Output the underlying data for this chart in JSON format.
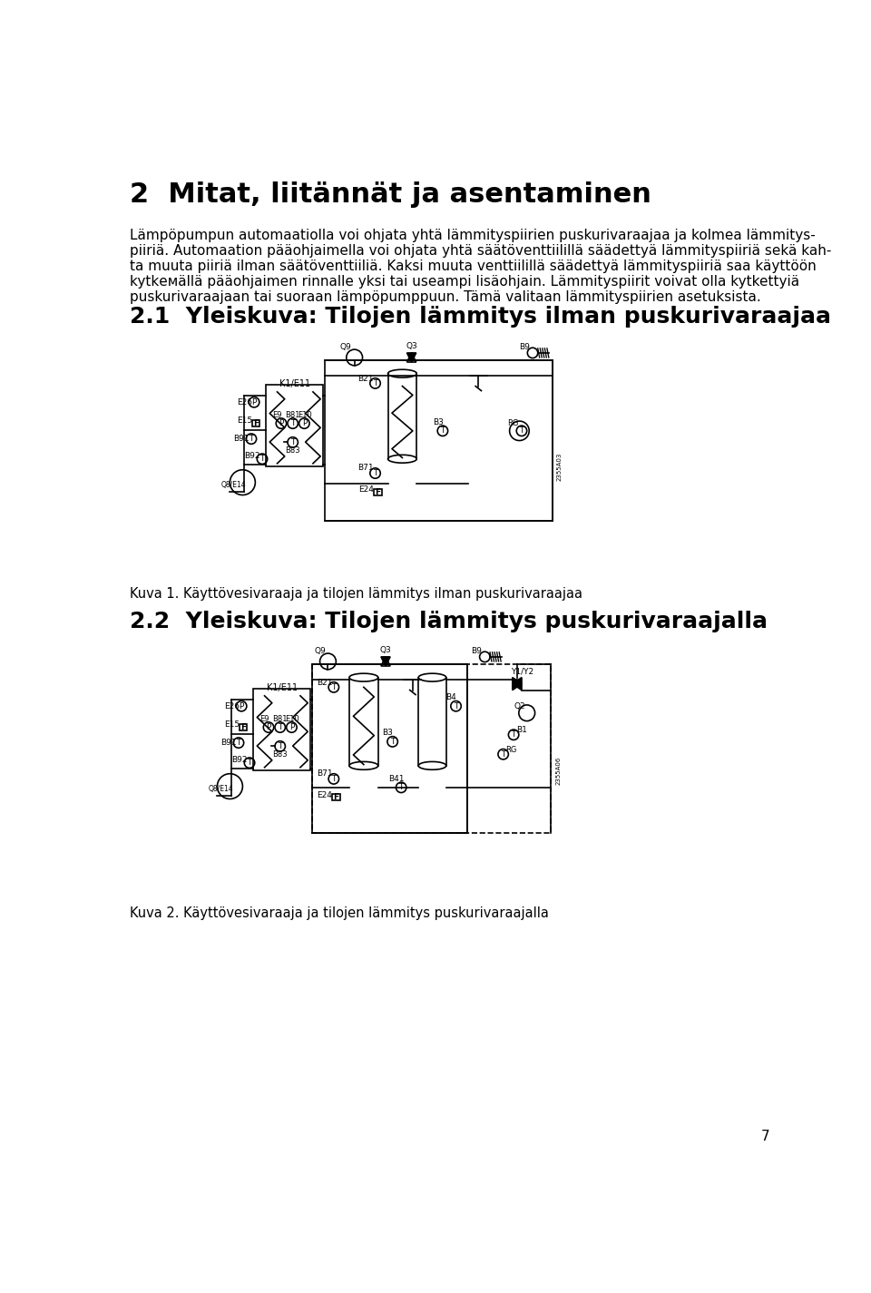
{
  "bg_color": "#ffffff",
  "text_color": "#000000",
  "page_width": 9.6,
  "page_height": 14.25,
  "page_number": "7",
  "section_heading": "2  Mitat, liitännät ja asentaminen",
  "subsection1": "2.1  Yleiskuva: Tilojen lämmitys ilman puskurivaraajaa",
  "caption1": "Kuva 1. Käyttövesivaraaja ja tilojen lämmitys ilman puskurivaraajaa",
  "subsection2": "2.2  Yleiskuva: Tilojen lämmitys puskurivaraajalla",
  "caption2": "Kuva 2. Käyttövesivaraaja ja tilojen lämmitys puskurivaraajalla",
  "body_lines": [
    "Lämpöpumpun automaatiolla voi ohjata yhtä lämmityspiirien puskurivaraajaa ja kolmea lämmitys-",
    "piiriä. Automaation pääohjaimella voi ohjata yhtä säätöventtiilillä säädettyä lämmityspiiriä sekä kah-",
    "ta muuta piiriä ilman säätöventtiiliä. Kaksi muuta venttiilillä säädettyä lämmityspiiriä saa käyttöön",
    "kytkемällä pääohjaimen rinnalle yksi tai useampi lisäohjain. Lämmityspiirit voivat olla kytkettyiä",
    "puskurivaraajaan tai suoraan lämpöpumppuun. Tämä valitaan lämmityspiirien asetuksista."
  ]
}
